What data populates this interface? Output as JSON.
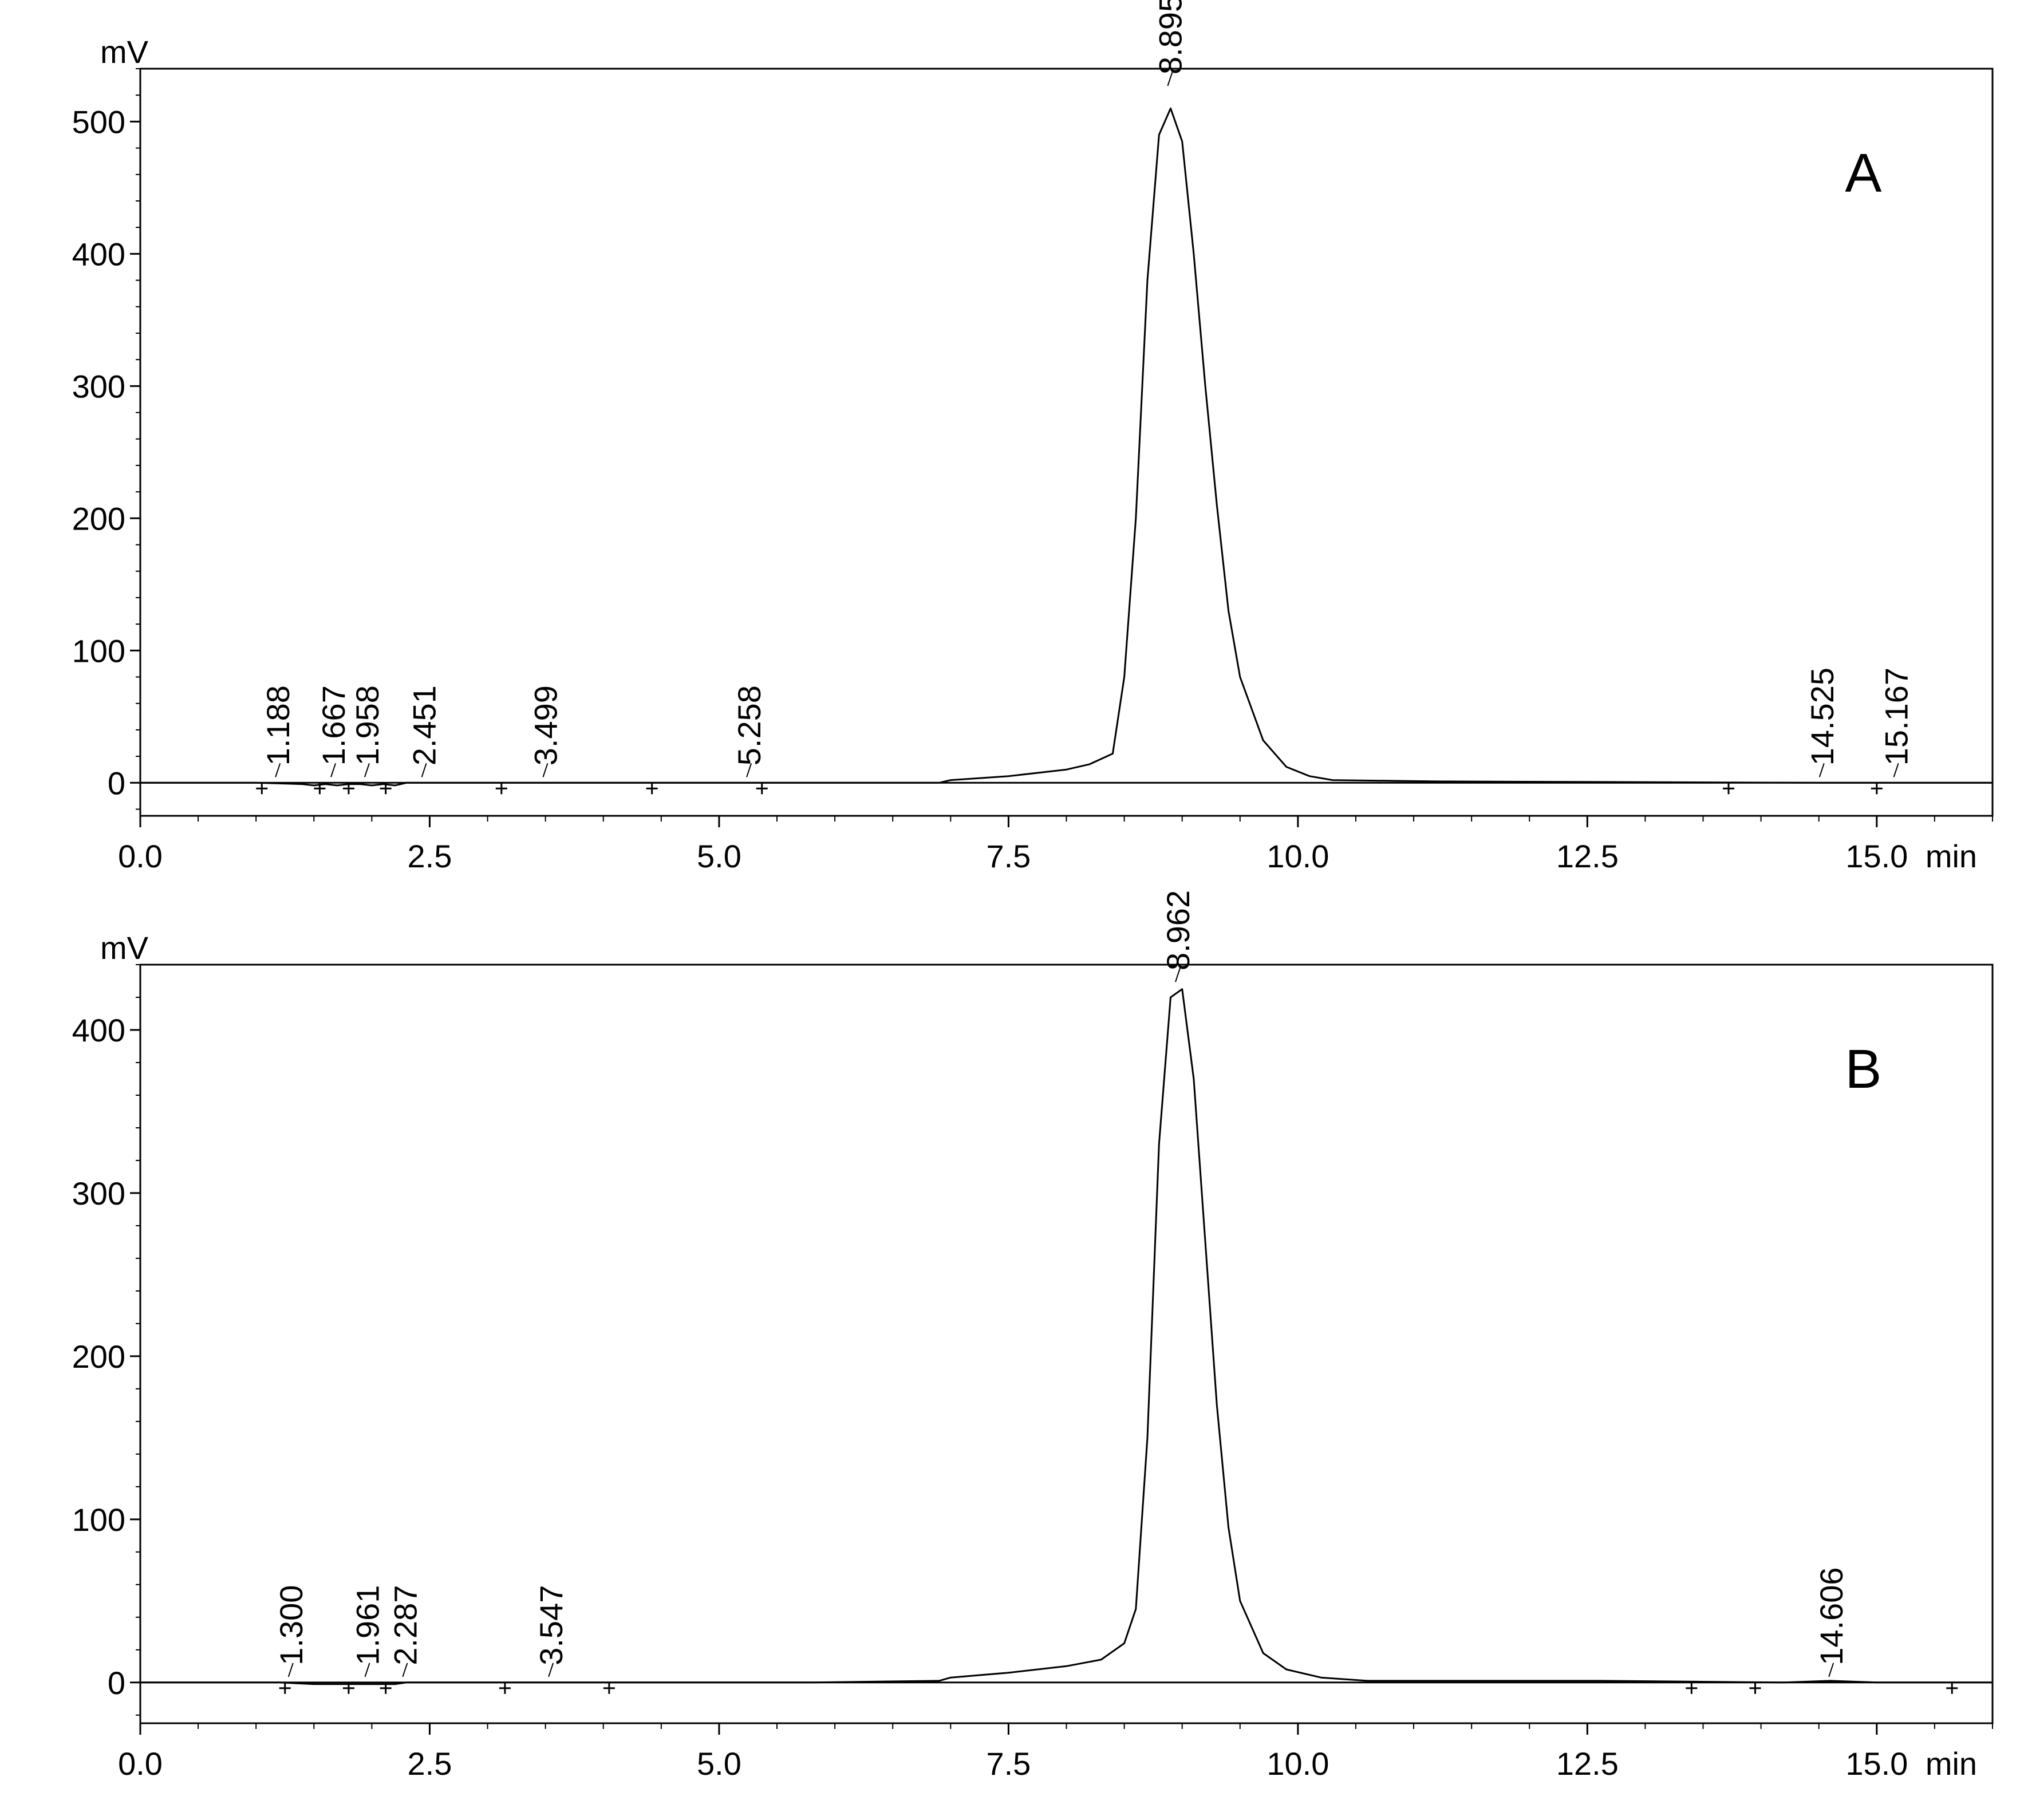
{
  "chart_data": [
    {
      "type": "line",
      "panel_label": "A",
      "ylabel": "mV",
      "xlabel": "min",
      "xlim": [
        0.0,
        16.0
      ],
      "ylim": [
        -25,
        540
      ],
      "x_ticks": [
        0.0,
        2.5,
        5.0,
        7.5,
        10.0,
        12.5,
        15.0
      ],
      "x_tick_labels": [
        "0.0",
        "2.5",
        "5.0",
        "7.5",
        "10.0",
        "12.5",
        "15.0"
      ],
      "y_ticks": [
        0,
        100,
        200,
        300,
        400,
        500
      ],
      "y_tick_labels": [
        "0",
        "100",
        "200",
        "300",
        "400",
        "500"
      ],
      "series": [
        {
          "x": [
            0.0,
            1.0,
            1.4,
            1.5,
            1.6,
            1.7,
            1.8,
            1.9,
            2.0,
            2.1,
            2.2,
            2.3,
            2.6,
            3.5,
            5.0,
            5.3,
            6.9,
            7.0,
            7.5,
            8.0,
            8.2,
            8.4,
            8.5,
            8.6,
            8.7,
            8.8,
            8.9,
            9.0,
            9.1,
            9.2,
            9.3,
            9.4,
            9.5,
            9.7,
            9.9,
            10.1,
            10.3,
            11.2,
            14.5,
            15.0,
            15.5,
            16.0
          ],
          "y": [
            0,
            0,
            -1,
            -2,
            -1,
            -2,
            -1,
            -1,
            -2,
            -1,
            -2,
            0,
            0,
            0,
            0,
            0,
            0,
            2,
            5,
            10,
            14,
            22,
            80,
            200,
            380,
            490,
            510,
            485,
            400,
            300,
            210,
            130,
            80,
            32,
            12,
            5,
            2,
            1,
            0,
            0,
            0,
            0
          ]
        }
      ],
      "peaks": [
        {
          "rt": 1.188,
          "label": "1.188"
        },
        {
          "rt": 1.667,
          "label": "1.667"
        },
        {
          "rt": 1.958,
          "label": "1.958"
        },
        {
          "rt": 2.451,
          "label": "2.451"
        },
        {
          "rt": 3.499,
          "label": "3.499"
        },
        {
          "rt": 5.258,
          "label": "5.258"
        },
        {
          "rt": 8.895,
          "label": "8.895"
        },
        {
          "rt": 14.525,
          "label": "14.525"
        },
        {
          "rt": 15.167,
          "label": "15.167"
        }
      ],
      "markers": [
        1.05,
        1.55,
        1.8,
        2.12,
        3.12,
        4.42,
        5.37,
        13.72,
        15.0
      ]
    },
    {
      "type": "line",
      "panel_label": "B",
      "ylabel": "mV",
      "xlabel": "min",
      "xlim": [
        0.0,
        16.0
      ],
      "ylim": [
        -25,
        440
      ],
      "x_ticks": [
        0.0,
        2.5,
        5.0,
        7.5,
        10.0,
        12.5,
        15.0
      ],
      "x_tick_labels": [
        "0.0",
        "2.5",
        "5.0",
        "7.5",
        "10.0",
        "12.5",
        "15.0"
      ],
      "y_ticks": [
        0,
        100,
        200,
        300,
        400
      ],
      "y_tick_labels": [
        "0",
        "100",
        "200",
        "300",
        "400"
      ],
      "series": [
        {
          "x": [
            0.0,
            1.2,
            1.5,
            1.6,
            1.9,
            2.0,
            2.1,
            2.2,
            2.3,
            2.6,
            3.5,
            4.0,
            5.8,
            6.9,
            7.0,
            7.5,
            8.0,
            8.3,
            8.5,
            8.6,
            8.7,
            8.8,
            8.9,
            9.0,
            9.1,
            9.2,
            9.3,
            9.4,
            9.5,
            9.7,
            9.9,
            10.2,
            10.6,
            12.6,
            14.2,
            14.6,
            15.0,
            15.4,
            16.0
          ],
          "y": [
            0,
            0,
            -1,
            -1,
            -1,
            -1,
            -1,
            -1,
            0,
            0,
            0,
            0,
            0,
            1,
            3,
            6,
            10,
            14,
            24,
            45,
            150,
            330,
            420,
            425,
            370,
            270,
            170,
            95,
            50,
            18,
            8,
            3,
            1,
            1,
            0,
            1,
            0,
            0,
            0
          ]
        }
      ],
      "peaks": [
        {
          "rt": 1.3,
          "label": "1.300"
        },
        {
          "rt": 1.961,
          "label": "1.961"
        },
        {
          "rt": 2.287,
          "label": "2.287"
        },
        {
          "rt": 3.547,
          "label": "3.547"
        },
        {
          "rt": 8.962,
          "label": "8.962"
        },
        {
          "rt": 14.606,
          "label": "14.606"
        }
      ],
      "markers": [
        1.25,
        1.8,
        2.12,
        3.15,
        4.05,
        13.4,
        13.95,
        15.65
      ]
    }
  ]
}
